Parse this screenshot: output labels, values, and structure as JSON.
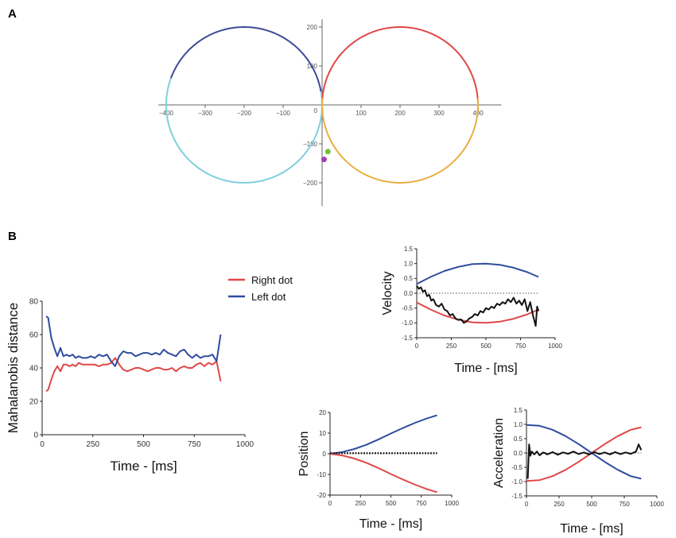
{
  "figure": {
    "panel_a_label": "A",
    "panel_b_label": "B"
  },
  "colors": {
    "red": "#e04848",
    "blue": "#2e4d9e",
    "black": "#111111",
    "cyan": "#7fd0dc",
    "orange": "#e8b040",
    "darkblue": "#3f4a9a",
    "green": "#74c23a",
    "purple": "#a040b0"
  },
  "chart_data": [
    {
      "id": "A",
      "type": "line",
      "title": "",
      "xlim": [
        -420,
        460
      ],
      "ylim": [
        -260,
        220
      ],
      "x_ticks": [
        -400,
        -300,
        -200,
        -100,
        100,
        200,
        300,
        400
      ],
      "x_tick_labels": [
        "−400",
        "−300",
        "−200",
        "−100",
        "100",
        "200",
        "300",
        "400"
      ],
      "y_ticks": [
        200,
        100,
        -100,
        -200
      ],
      "y_tick_labels": [
        "200",
        "100",
        "−100",
        "−200"
      ],
      "origin_label": "0",
      "circles": [
        {
          "name": "left-upper",
          "cx": -200,
          "cy": 0,
          "r": 200,
          "start_deg": 10,
          "end_deg": 160,
          "color": "#3f4a9a"
        },
        {
          "name": "left-lower",
          "cx": -200,
          "cy": 0,
          "r": 200,
          "start_deg": 160,
          "end_deg": 370,
          "color": "#7fd0dc"
        },
        {
          "name": "right-upper",
          "cx": 200,
          "cy": 0,
          "r": 200,
          "start_deg": -5,
          "end_deg": 185,
          "color": "#e04848"
        },
        {
          "name": "right-lower",
          "cx": 200,
          "cy": 0,
          "r": 200,
          "start_deg": 175,
          "end_deg": 365,
          "color": "#e8b040"
        }
      ],
      "dots": [
        {
          "name": "green-dot",
          "x": 15,
          "y": -120,
          "color": "#74c23a"
        },
        {
          "name": "purple-dot",
          "x": 5,
          "y": -140,
          "color": "#a040b0"
        }
      ]
    },
    {
      "id": "mahalanobis",
      "type": "line",
      "title": "",
      "xlabel": "Time - [ms]",
      "ylabel": "Mahalanobis distance",
      "xlim": [
        0,
        1000
      ],
      "ylim": [
        0,
        80
      ],
      "x_ticks": [
        0,
        250,
        500,
        750,
        1000
      ],
      "y_ticks": [
        0,
        20,
        40,
        60,
        80
      ],
      "legend": [
        "Right dot",
        "Left dot"
      ],
      "series": [
        {
          "name": "Right dot",
          "color": "#e04848",
          "x": [
            20,
            30,
            45,
            60,
            75,
            90,
            105,
            120,
            135,
            150,
            165,
            180,
            200,
            220,
            240,
            260,
            280,
            300,
            320,
            340,
            360,
            380,
            400,
            420,
            440,
            460,
            480,
            500,
            520,
            540,
            560,
            580,
            600,
            620,
            640,
            660,
            680,
            700,
            720,
            740,
            760,
            780,
            800,
            820,
            840,
            860,
            870,
            880
          ],
          "y": [
            26,
            27,
            33,
            38,
            41,
            38,
            42,
            42,
            41,
            42,
            41,
            43,
            42,
            42,
            42,
            42,
            41,
            42,
            42,
            43,
            46,
            42,
            39,
            38,
            39,
            40,
            40,
            39,
            38,
            39,
            40,
            40,
            39,
            39,
            40,
            38,
            40,
            41,
            40,
            40,
            42,
            43,
            41,
            43,
            42,
            44,
            38,
            32
          ]
        },
        {
          "name": "Left dot",
          "color": "#2e4d9e",
          "x": [
            20,
            30,
            45,
            60,
            75,
            90,
            105,
            120,
            135,
            150,
            165,
            180,
            200,
            220,
            240,
            260,
            280,
            300,
            320,
            340,
            360,
            380,
            400,
            420,
            440,
            460,
            480,
            500,
            520,
            540,
            560,
            580,
            600,
            620,
            640,
            660,
            680,
            700,
            720,
            740,
            760,
            780,
            800,
            820,
            840,
            860,
            870,
            880
          ],
          "y": [
            71,
            70,
            58,
            52,
            47,
            52,
            47,
            48,
            47,
            48,
            46,
            47,
            46,
            46,
            47,
            46,
            48,
            47,
            48,
            44,
            41,
            47,
            50,
            49,
            49,
            47,
            48,
            49,
            49,
            48,
            49,
            48,
            51,
            49,
            48,
            47,
            50,
            51,
            48,
            46,
            48,
            46,
            47,
            47,
            48,
            44,
            52,
            60
          ]
        }
      ]
    },
    {
      "id": "velocity",
      "type": "line",
      "title": "",
      "xlabel": "Time - [ms]",
      "ylabel": "Velocity",
      "xlim": [
        0,
        1000
      ],
      "ylim": [
        -1.5,
        1.5
      ],
      "x_ticks": [
        0,
        250,
        500,
        750,
        1000
      ],
      "y_ticks": [
        1.5,
        1.0,
        0.5,
        0.0,
        -0.5,
        -1.0,
        -1.5
      ],
      "y_tick_labels": [
        "1.5",
        "1.0",
        "0.5",
        "0.0",
        "-0.5",
        "-1.0",
        "-1.5"
      ],
      "series": [
        {
          "name": "blue",
          "color": "#2e4d9e",
          "x": [
            0,
            100,
            200,
            300,
            400,
            500,
            600,
            700,
            800,
            880
          ],
          "y": [
            0.31,
            0.55,
            0.75,
            0.89,
            0.98,
            1.0,
            0.96,
            0.86,
            0.71,
            0.55
          ]
        },
        {
          "name": "red",
          "color": "#e04848",
          "x": [
            0,
            100,
            200,
            300,
            400,
            500,
            600,
            700,
            800,
            880
          ],
          "y": [
            -0.31,
            -0.55,
            -0.75,
            -0.89,
            -0.98,
            -1.0,
            -0.96,
            -0.86,
            -0.71,
            -0.55
          ]
        },
        {
          "name": "black",
          "color": "#111111",
          "x": [
            0,
            15,
            30,
            45,
            60,
            75,
            90,
            105,
            120,
            140,
            160,
            180,
            200,
            220,
            240,
            260,
            280,
            300,
            320,
            340,
            360,
            380,
            400,
            420,
            440,
            460,
            480,
            500,
            520,
            540,
            560,
            580,
            600,
            620,
            640,
            660,
            680,
            700,
            720,
            740,
            760,
            780,
            800,
            820,
            840,
            860,
            870,
            880
          ],
          "y": [
            0.25,
            0.15,
            0.2,
            0.05,
            0.1,
            -0.1,
            -0.05,
            -0.25,
            -0.2,
            -0.4,
            -0.45,
            -0.35,
            -0.55,
            -0.6,
            -0.75,
            -0.7,
            -0.85,
            -0.9,
            -0.88,
            -1.0,
            -0.95,
            -0.85,
            -0.8,
            -0.7,
            -0.75,
            -0.6,
            -0.65,
            -0.5,
            -0.55,
            -0.45,
            -0.5,
            -0.35,
            -0.4,
            -0.3,
            -0.35,
            -0.2,
            -0.3,
            -0.15,
            -0.35,
            -0.25,
            -0.4,
            -0.2,
            -0.6,
            -0.3,
            -0.75,
            -1.1,
            -0.45,
            -0.6
          ]
        }
      ]
    },
    {
      "id": "position",
      "type": "line",
      "title": "",
      "xlabel": "Time - [ms]",
      "ylabel": "Position",
      "xlim": [
        0,
        1000
      ],
      "ylim": [
        -20,
        20
      ],
      "x_ticks": [
        0,
        250,
        500,
        750,
        1000
      ],
      "y_ticks": [
        20,
        10,
        0,
        -10,
        -20
      ],
      "y_tick_labels": [
        "20",
        "10",
        "0",
        "-10",
        "-20"
      ],
      "series": [
        {
          "name": "blue",
          "color": "#2e4d9e",
          "x": [
            0,
            100,
            200,
            300,
            400,
            500,
            600,
            700,
            800,
            880
          ],
          "y": [
            0,
            0.8,
            2.3,
            4.4,
            7.0,
            9.8,
            12.5,
            15.0,
            17.2,
            18.6
          ]
        },
        {
          "name": "red",
          "color": "#e04848",
          "x": [
            0,
            100,
            200,
            300,
            400,
            500,
            600,
            700,
            800,
            880
          ],
          "y": [
            0,
            -0.8,
            -2.3,
            -4.4,
            -7.0,
            -9.8,
            -12.5,
            -15.0,
            -17.2,
            -18.6
          ]
        },
        {
          "name": "black",
          "color": "#111111",
          "x": [
            0,
            880
          ],
          "y": [
            0.3,
            0.3
          ]
        }
      ]
    },
    {
      "id": "acceleration",
      "type": "line",
      "title": "",
      "xlabel": "Time - [ms]",
      "ylabel": "Acceleration",
      "xlim": [
        0,
        1000
      ],
      "ylim": [
        -1.5,
        1.5
      ],
      "x_ticks": [
        0,
        250,
        500,
        750,
        1000
      ],
      "y_ticks": [
        1.5,
        1.0,
        0.5,
        0.0,
        -0.5,
        -1.0,
        -1.5
      ],
      "y_tick_labels": [
        "1.5",
        "1.0",
        "0.5",
        "0.0",
        "-0.5",
        "-1.0",
        "-1.5"
      ],
      "series": [
        {
          "name": "blue",
          "color": "#2e4d9e",
          "x": [
            0,
            100,
            200,
            300,
            400,
            500,
            600,
            700,
            800,
            880
          ],
          "y": [
            0.98,
            0.95,
            0.81,
            0.59,
            0.31,
            0.0,
            -0.31,
            -0.59,
            -0.81,
            -0.9
          ]
        },
        {
          "name": "red",
          "color": "#e04848",
          "x": [
            0,
            100,
            200,
            300,
            400,
            500,
            600,
            700,
            800,
            880
          ],
          "y": [
            -0.98,
            -0.95,
            -0.81,
            -0.59,
            -0.31,
            0.0,
            0.31,
            0.59,
            0.81,
            0.9
          ]
        },
        {
          "name": "black",
          "color": "#111111",
          "x": [
            10,
            20,
            30,
            40,
            60,
            80,
            100,
            130,
            160,
            200,
            240,
            280,
            320,
            360,
            400,
            440,
            480,
            520,
            560,
            600,
            640,
            680,
            720,
            760,
            800,
            840,
            860,
            870,
            880
          ],
          "y": [
            -0.9,
            0.3,
            -0.1,
            0.05,
            -0.05,
            0.05,
            -0.08,
            0.02,
            -0.05,
            0.03,
            -0.06,
            0.02,
            -0.03,
            0.05,
            -0.04,
            0.02,
            -0.05,
            0.03,
            -0.04,
            0.02,
            -0.05,
            0.03,
            -0.04,
            0.02,
            -0.03,
            0.05,
            0.3,
            0.2,
            0.1
          ]
        }
      ]
    }
  ]
}
